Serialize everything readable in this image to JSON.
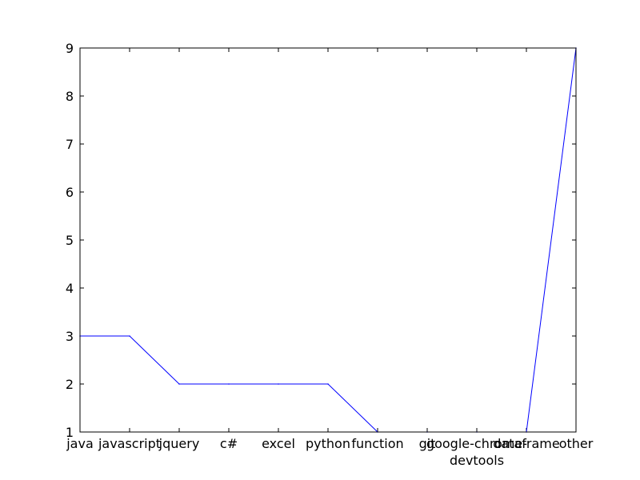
{
  "chart_data": {
    "type": "line",
    "title": "",
    "xlabel": "",
    "ylabel": "",
    "categories": [
      "java",
      "javascript",
      "jquery",
      "c#",
      "excel",
      "python",
      "function",
      "git",
      "google-chrome-devtools",
      "dataframe",
      "other"
    ],
    "category_labels": [
      [
        "java"
      ],
      [
        "javascript"
      ],
      [
        "jquery"
      ],
      [
        "c#"
      ],
      [
        "excel"
      ],
      [
        "python"
      ],
      [
        "function"
      ],
      [
        "git"
      ],
      [
        "google-chrome-",
        "devtools"
      ],
      [
        "dataframe"
      ],
      [
        "other"
      ]
    ],
    "series": [
      {
        "values": [
          3,
          3,
          2,
          2,
          2,
          2,
          1,
          1,
          1,
          1,
          9
        ],
        "color": "#0000ff"
      }
    ],
    "ylim": [
      1,
      9
    ],
    "yticks": [
      1,
      2,
      3,
      4,
      5,
      6,
      7,
      8,
      9
    ],
    "grid": false,
    "legend": "none"
  }
}
